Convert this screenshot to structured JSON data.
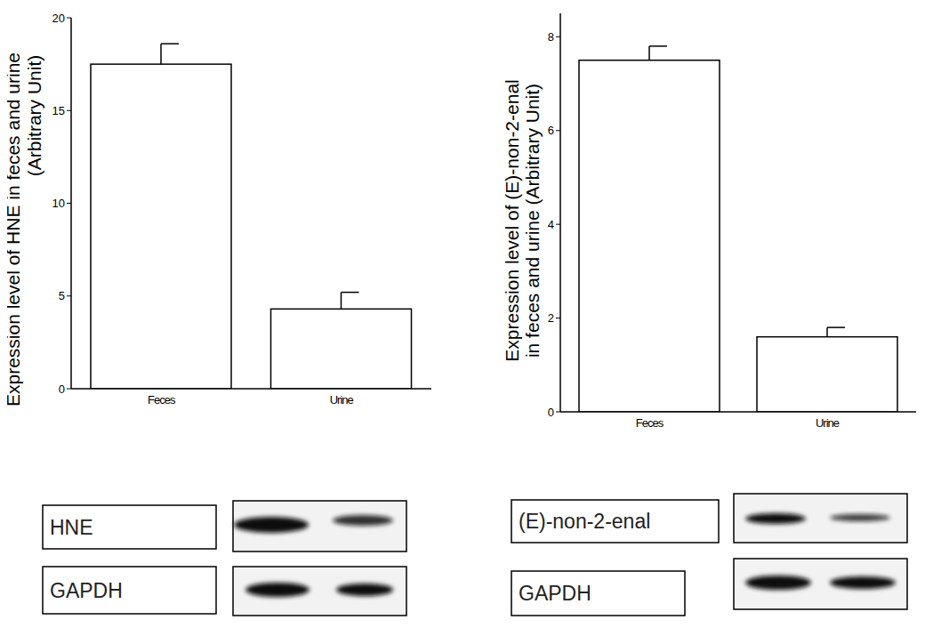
{
  "chart_data": [
    {
      "type": "bar",
      "categories": [
        "Feces",
        "Urine"
      ],
      "values": [
        17.5,
        4.3
      ],
      "error": [
        1.1,
        0.9
      ],
      "color": "#ffffff",
      "y_label": [
        "Expression level of HNE in feces and urine",
        "(Arbitrary Unit)"
      ],
      "ylim": [
        0,
        20
      ],
      "yticks": [
        0,
        5,
        10,
        15,
        20
      ],
      "blot_labels": [
        "HNE",
        "GAPDH"
      ]
    },
    {
      "type": "bar",
      "categories": [
        "Feces",
        "Urine"
      ],
      "values": [
        7.5,
        1.6
      ],
      "error": [
        0.3,
        0.2
      ],
      "color": "#ffffff",
      "y_label": [
        "Expression level of (E)-non-2-enal",
        "in feces and urine (Arbitrary Unit)"
      ],
      "ylim": [
        0,
        8.5
      ],
      "yticks": [
        0,
        2,
        4,
        6,
        8
      ],
      "blot_labels": [
        "(E)-non-2-enal",
        "GAPDH"
      ]
    }
  ]
}
